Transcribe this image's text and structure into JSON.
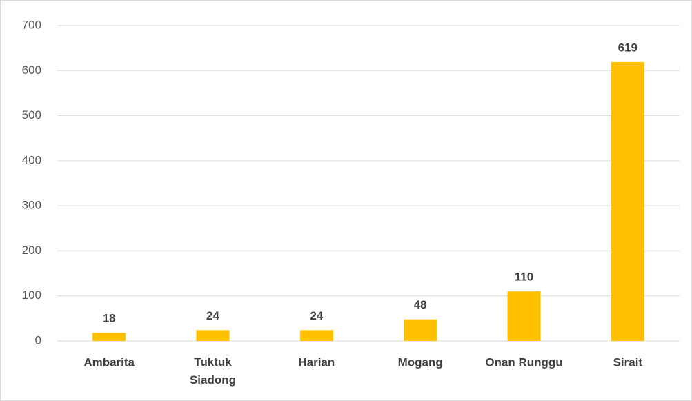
{
  "chart_data": {
    "type": "bar",
    "categories": [
      "Ambarita",
      "Tuktuk Siadong",
      "Harian",
      "Mogang",
      "Onan Runggu",
      "Sirait"
    ],
    "values": [
      18,
      24,
      24,
      48,
      110,
      619
    ],
    "color": "#ffc000",
    "ylim": [
      0,
      700
    ],
    "yticks": [
      0,
      100,
      200,
      300,
      400,
      500,
      600,
      700
    ],
    "grid": true,
    "data_labels": true
  }
}
